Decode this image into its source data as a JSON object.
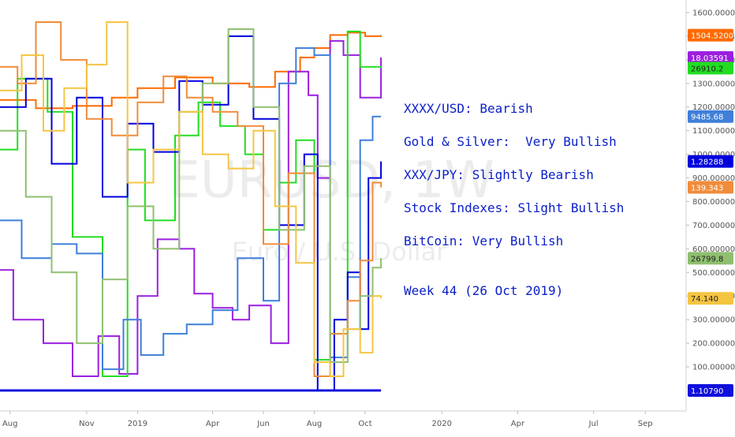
{
  "chart_data": {
    "type": "line",
    "watermark": {
      "symbol": "EURUSD, 1W",
      "name": "Euro / U.S. Dollar"
    },
    "x_axis": {
      "tick_labels": [
        "Aug",
        "Nov",
        "2019",
        "Apr",
        "Jun",
        "Aug",
        "Oct",
        "2020",
        "Apr",
        "Jul",
        "Sep"
      ],
      "tick_dates": [
        "2018-08-01",
        "2018-11-01",
        "2019-01-01",
        "2019-04-01",
        "2019-06-01",
        "2019-08-01",
        "2019-10-01",
        "2020-01-01",
        "2020-04-01",
        "2020-07-01",
        "2020-09-01"
      ],
      "range": [
        "2018-07-20",
        "2020-10-20"
      ]
    },
    "y_axis": {
      "position": "right",
      "range": [
        0,
        1620
      ],
      "tick_labels": [
        "100.00000",
        "200.00000",
        "300.00000",
        "400.00000",
        "500.00000",
        "600.00000",
        "700.00000",
        "800.00000",
        "900.00000",
        "1000.00000",
        "1100.00000",
        "1200.00000",
        "1300.00000",
        "1400.00000",
        "1500.00000",
        "1600.00000"
      ],
      "tick_values": [
        100,
        200,
        300,
        400,
        500,
        600,
        700,
        800,
        900,
        1000,
        1100,
        1200,
        1300,
        1400,
        1500,
        1600
      ]
    },
    "grid": false,
    "series": [
      {
        "color": "#ff6a00",
        "last_label": "1504.52000",
        "last_value": 1504.5,
        "x": [
          "2018-07-20",
          "2018-09-01",
          "2018-10-15",
          "2018-12-01",
          "2019-01-01",
          "2019-02-15",
          "2019-04-01",
          "2019-05-15",
          "2019-06-15",
          "2019-07-15",
          "2019-08-01",
          "2019-08-20",
          "2019-09-10",
          "2019-10-01",
          "2019-10-20"
        ],
        "values": [
          1230,
          1195,
          1205,
          1240,
          1280,
          1325,
          1300,
          1285,
          1350,
          1410,
          1450,
          1505,
          1515,
          1500,
          1505
        ]
      },
      {
        "color": "#9b1fe0",
        "last_label": "18.03591",
        "last_value": 1410,
        "x": [
          "2018-07-20",
          "2018-08-05",
          "2018-09-10",
          "2018-10-15",
          "2018-11-15",
          "2018-12-10",
          "2019-01-01",
          "2019-01-25",
          "2019-02-20",
          "2019-03-10",
          "2019-04-01",
          "2019-04-25",
          "2019-05-15",
          "2019-06-10",
          "2019-07-01",
          "2019-07-25",
          "2019-08-05",
          "2019-08-20",
          "2019-09-05",
          "2019-09-25",
          "2019-10-10",
          "2019-10-20"
        ],
        "values": [
          510,
          300,
          200,
          60,
          230,
          70,
          400,
          640,
          600,
          410,
          350,
          300,
          360,
          200,
          1350,
          1250,
          900,
          1480,
          1420,
          1240,
          1240,
          1410
        ]
      },
      {
        "color": "#22dd22",
        "last_label": "26910.2",
        "last_value": 1365,
        "x": [
          "2018-07-20",
          "2018-08-10",
          "2018-09-15",
          "2018-10-15",
          "2018-11-20",
          "2018-12-20",
          "2019-01-10",
          "2019-02-15",
          "2019-03-15",
          "2019-04-10",
          "2019-05-10",
          "2019-06-01",
          "2019-06-20",
          "2019-07-10",
          "2019-08-01",
          "2019-08-20",
          "2019-09-10",
          "2019-09-25",
          "2019-10-10",
          "2019-10-20"
        ],
        "values": [
          1020,
          1320,
          1180,
          650,
          60,
          1020,
          720,
          1080,
          1220,
          1120,
          1000,
          680,
          880,
          1060,
          130,
          240,
          1520,
          1370,
          1370,
          1365
        ]
      },
      {
        "color": "#3f7fd9",
        "last_label": "9485.68",
        "last_value": 1160,
        "x": [
          "2018-07-20",
          "2018-08-15",
          "2018-09-20",
          "2018-10-20",
          "2018-11-20",
          "2018-12-15",
          "2019-01-05",
          "2019-02-01",
          "2019-03-01",
          "2019-04-01",
          "2019-05-01",
          "2019-06-01",
          "2019-06-20",
          "2019-07-10",
          "2019-08-01",
          "2019-08-20",
          "2019-09-10",
          "2019-09-25",
          "2019-10-10",
          "2019-10-20"
        ],
        "values": [
          720,
          560,
          620,
          580,
          90,
          300,
          150,
          240,
          280,
          340,
          560,
          380,
          1300,
          1450,
          1420,
          140,
          480,
          1060,
          1160,
          1160
        ]
      },
      {
        "color": "#0000dd",
        "last_label": "1.28288",
        "last_value": 970,
        "x": [
          "2018-07-20",
          "2018-08-20",
          "2018-09-20",
          "2018-10-20",
          "2018-11-20",
          "2018-12-20",
          "2019-01-20",
          "2019-02-20",
          "2019-03-20",
          "2019-04-20",
          "2019-05-20",
          "2019-06-20",
          "2019-07-20",
          "2019-08-05",
          "2019-08-25",
          "2019-09-10",
          "2019-09-25",
          "2019-10-05",
          "2019-10-20"
        ],
        "values": [
          1200,
          1320,
          960,
          1240,
          820,
          1130,
          1010,
          1310,
          1210,
          1500,
          1150,
          700,
          1000,
          0,
          300,
          500,
          260,
          900,
          970
        ]
      },
      {
        "color": "#f08c3a",
        "last_label": "139.343",
        "last_value": 860,
        "x": [
          "2018-07-20",
          "2018-08-10",
          "2018-09-01",
          "2018-10-01",
          "2018-11-01",
          "2018-12-01",
          "2019-01-01",
          "2019-02-01",
          "2019-03-01",
          "2019-04-01",
          "2019-05-01",
          "2019-06-01",
          "2019-07-01",
          "2019-08-01",
          "2019-08-20",
          "2019-09-10",
          "2019-09-25",
          "2019-10-10",
          "2019-10-20"
        ],
        "values": [
          1370,
          1300,
          1560,
          1400,
          1150,
          1080,
          1220,
          1330,
          1240,
          1180,
          1120,
          620,
          920,
          60,
          240,
          380,
          550,
          880,
          860
        ]
      },
      {
        "color": "#8fbf6f",
        "last_label": "26799.8",
        "last_value": 560,
        "x": [
          "2018-07-20",
          "2018-08-20",
          "2018-09-20",
          "2018-10-20",
          "2018-11-20",
          "2018-12-20",
          "2019-01-20",
          "2019-02-20",
          "2019-03-20",
          "2019-04-20",
          "2019-05-20",
          "2019-06-20",
          "2019-07-20",
          "2019-08-20",
          "2019-09-10",
          "2019-09-25",
          "2019-10-10",
          "2019-10-20"
        ],
        "values": [
          1100,
          820,
          500,
          200,
          470,
          780,
          600,
          1180,
          1300,
          1530,
          1200,
          680,
          950,
          120,
          260,
          400,
          520,
          560
        ]
      },
      {
        "color": "#f5c542",
        "last_label": "74.140",
        "last_value": 390,
        "x": [
          "2018-07-20",
          "2018-08-15",
          "2018-09-10",
          "2018-10-05",
          "2018-11-01",
          "2018-11-25",
          "2018-12-20",
          "2019-01-20",
          "2019-02-20",
          "2019-03-20",
          "2019-04-20",
          "2019-05-20",
          "2019-06-15",
          "2019-07-10",
          "2019-08-01",
          "2019-08-20",
          "2019-09-05",
          "2019-09-25",
          "2019-10-10",
          "2019-10-20"
        ],
        "values": [
          1270,
          1420,
          1100,
          1280,
          1380,
          1560,
          880,
          1020,
          1180,
          1000,
          940,
          1100,
          780,
          540,
          120,
          60,
          260,
          160,
          400,
          390
        ]
      },
      {
        "color": "#1010dd",
        "last_label": "1.10790",
        "last_value": 0,
        "x": [
          "2018-07-20",
          "2019-10-20"
        ],
        "values": [
          0,
          0
        ]
      }
    ]
  },
  "annotations": [
    "XXXX/USD: Bearish",
    "Gold & Silver:  Very Bullish",
    "XXX/JPY: Slightly Bearish",
    "Stock Indexes: Slight Bullish",
    "BitCoin: Very Bullish",
    "Week 44 (26 Oct 2019)"
  ],
  "colors": {
    "annotation": "#0a1ec8",
    "axis": "#8a8a8a",
    "watermark": "#ececec"
  }
}
